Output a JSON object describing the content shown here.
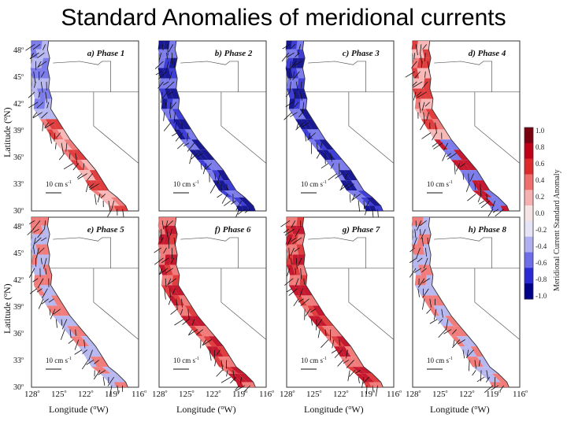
{
  "title": "Standard Anomalies of meridional currents",
  "panels": [
    {
      "label": "a) Phase 1"
    },
    {
      "label": "b) Phase 2"
    },
    {
      "label": "c) Phase 3"
    },
    {
      "label": "d) Phase 4"
    },
    {
      "label": "e) Phase 5"
    },
    {
      "label": "f) Phase 6"
    },
    {
      "label": "g) Phase 7"
    },
    {
      "label": "h) Phase 8"
    }
  ],
  "scale_vector": {
    "value": "10",
    "unit": "cm s",
    "exponent": "-1"
  },
  "y_axis": {
    "label": "Latitude (",
    "label_sup": "o",
    "label_end": "N)",
    "ticks": [
      "48",
      "45",
      "42",
      "39",
      "36",
      "33",
      "30"
    ]
  },
  "x_axis": {
    "label": "Longitude (",
    "label_sup": "o",
    "label_end": "W)",
    "ticks": [
      "128",
      "125",
      "122",
      "119",
      "116"
    ]
  },
  "colorbar": {
    "label": "Meridional Current Standard Anomaly",
    "ticks": [
      "1.0",
      "0.8",
      "0.6",
      "0.4",
      "0.2",
      "0.0",
      "-0.2",
      "-0.4",
      "-0.6",
      "-0.8",
      "-1.0"
    ],
    "colors": [
      "#7a0010",
      "#c00018",
      "#de2a2a",
      "#ef6e6e",
      "#f7b0b0",
      "#f5e4e4",
      "#e4e4f5",
      "#b0b0f0",
      "#6e6ee8",
      "#2a2ad4",
      "#000088"
    ]
  },
  "panel_fills": [
    {
      "hue": "mixed",
      "dominant": "blue-north-red-south"
    },
    {
      "hue": "blue",
      "dominant": "blue"
    },
    {
      "hue": "blue",
      "dominant": "blue"
    },
    {
      "hue": "mixed",
      "dominant": "red-south"
    },
    {
      "hue": "mixed",
      "dominant": "weak"
    },
    {
      "hue": "red",
      "dominant": "red"
    },
    {
      "hue": "red",
      "dominant": "red"
    },
    {
      "hue": "mixed",
      "dominant": "weak"
    }
  ]
}
